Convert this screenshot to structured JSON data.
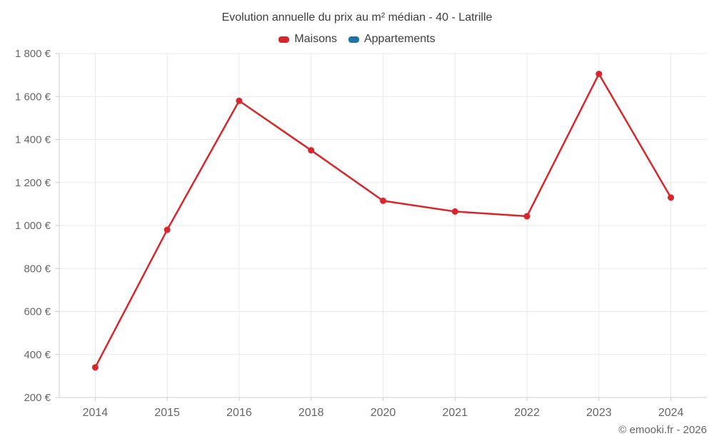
{
  "chart_data": {
    "type": "line",
    "title": "Evolution annuelle du prix au m² médian - 40 - Latrille",
    "categories": [
      "2014",
      "2015",
      "2016",
      "2018",
      "2020",
      "2021",
      "2022",
      "2023",
      "2024"
    ],
    "series": [
      {
        "name": "Maisons",
        "color": "#d8262c",
        "values": [
          340,
          980,
          1580,
          1350,
          1115,
          1065,
          1043,
          1705,
          1130
        ]
      },
      {
        "name": "Appartements",
        "color": "#1c74a8",
        "values": []
      }
    ],
    "xlabel": "",
    "ylabel": "",
    "ylim": [
      200,
      1800
    ],
    "y_tick_values": [
      200,
      400,
      600,
      800,
      1000,
      1200,
      1400,
      1600,
      1800
    ],
    "y_tick_labels": [
      "200 €",
      "400 €",
      "600 €",
      "800 €",
      "1 000 €",
      "1 200 €",
      "1 400 €",
      "1 600 €",
      "1 800 €"
    ],
    "grid": true,
    "legend_position": "top"
  },
  "footer": {
    "copyright": "© emooki.fr - 2026"
  },
  "style": {
    "grid_color": "#e9e9e9",
    "axis_color": "#cfcfcf",
    "background": "#ffffff"
  }
}
